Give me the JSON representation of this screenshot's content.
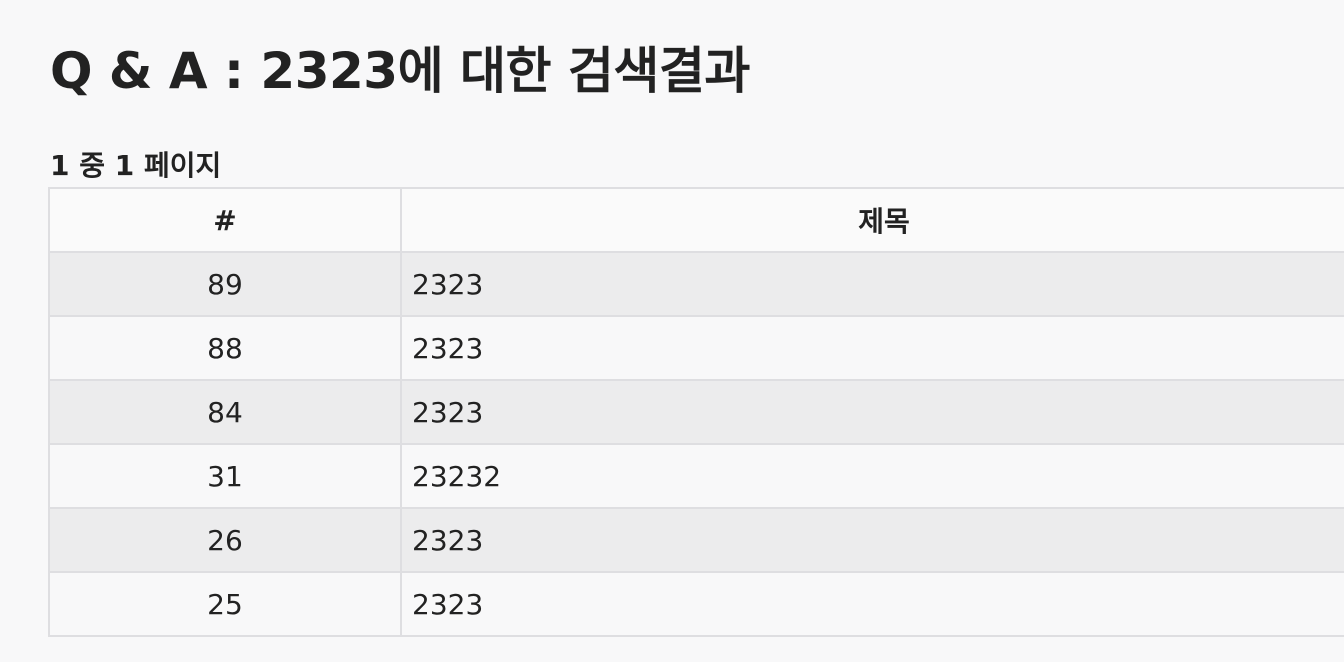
{
  "page_title": "Q & A : 2323에 대한 검색결과",
  "pagination": {
    "label": "1 중 1 페이지"
  },
  "table": {
    "columns": {
      "number": "#",
      "title": "제목"
    },
    "rows": [
      {
        "number": "89",
        "title": "2323"
      },
      {
        "number": "88",
        "title": "2323"
      },
      {
        "number": "84",
        "title": "2323"
      },
      {
        "number": "31",
        "title": "23232"
      },
      {
        "number": "26",
        "title": "2323"
      },
      {
        "number": "25",
        "title": "2323"
      }
    ]
  }
}
